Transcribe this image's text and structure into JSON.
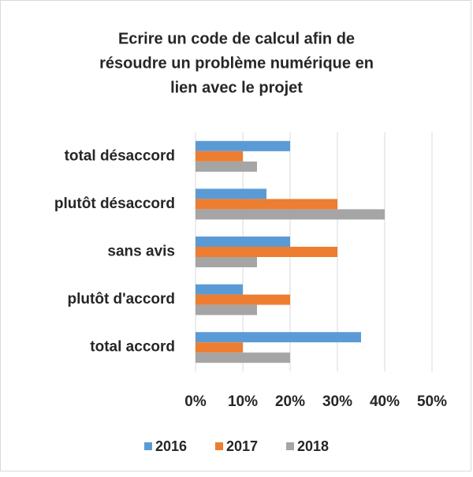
{
  "chart_data": {
    "type": "hbar",
    "title": [
      "Ecrire un code de calcul afin de",
      "résoudre un problème numérique en",
      "lien avec le projet"
    ],
    "categories": [
      "total désaccord",
      "plutôt désaccord",
      "sans avis",
      "plutôt d'accord",
      "total accord"
    ],
    "series": [
      {
        "name": "2016",
        "color": "#5b9bd5",
        "values": [
          20,
          15,
          20,
          10,
          35
        ]
      },
      {
        "name": "2017",
        "color": "#ed7d31",
        "values": [
          10,
          30,
          30,
          20,
          10
        ]
      },
      {
        "name": "2018",
        "color": "#a5a5a5",
        "values": [
          13,
          40,
          13,
          13,
          20
        ]
      }
    ],
    "xlim": [
      0,
      50
    ],
    "xticks": [
      {
        "value": 0,
        "label": "0%"
      },
      {
        "value": 10,
        "label": "10%"
      },
      {
        "value": 20,
        "label": "20%"
      },
      {
        "value": 30,
        "label": "30%"
      },
      {
        "value": 40,
        "label": "40%"
      },
      {
        "value": 50,
        "label": "50%"
      }
    ],
    "grid": true,
    "legend": "bottom"
  }
}
